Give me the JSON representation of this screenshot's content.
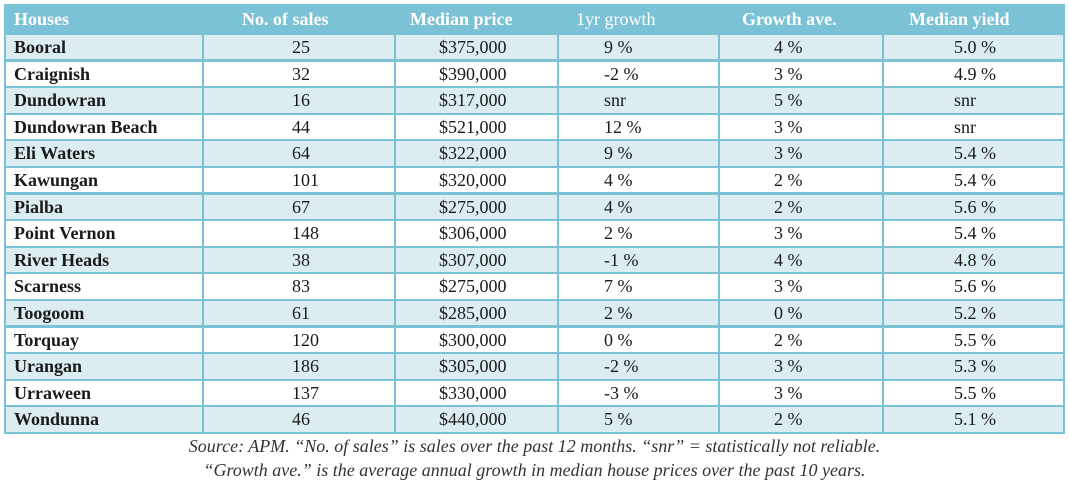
{
  "table": {
    "headers": [
      "Houses",
      "No. of sales",
      "Median price",
      "1yr growth",
      "Growth ave.",
      "Median yield"
    ],
    "rows": [
      [
        "Booral",
        "25",
        "$375,000",
        "9 %",
        "4 %",
        "5.0 %"
      ],
      [
        "Craignish",
        "32",
        "$390,000",
        "-2 %",
        "3 %",
        "4.9 %"
      ],
      [
        "Dundowran",
        "16",
        "$317,000",
        "snr",
        "5 %",
        "snr"
      ],
      [
        "Dundowran Beach",
        "44",
        "$521,000",
        "12 %",
        "3 %",
        "snr"
      ],
      [
        "Eli Waters",
        "64",
        "$322,000",
        "9 %",
        "3 %",
        "5.4 %"
      ],
      [
        "Kawungan",
        "101",
        "$320,000",
        "4 %",
        "2 %",
        "5.4 %"
      ],
      [
        "Pialba",
        "67",
        "$275,000",
        "4 %",
        "2 %",
        "5.6 %"
      ],
      [
        "Point Vernon",
        "148",
        "$306,000",
        "2 %",
        "3 %",
        "5.4 %"
      ],
      [
        "River Heads",
        "38",
        "$307,000",
        "-1 %",
        "4 %",
        "4.8 %"
      ],
      [
        "Scarness",
        "83",
        "$275,000",
        "7 %",
        "3 %",
        "5.6 %"
      ],
      [
        "Toogoom",
        "61",
        "$285,000",
        "2 %",
        "0 %",
        "5.2 %"
      ],
      [
        "Torquay",
        "120",
        "$300,000",
        "0 %",
        "2 %",
        "5.5 %"
      ],
      [
        "Urangan",
        "186",
        "$305,000",
        "-2 %",
        "3 %",
        "5.3 %"
      ],
      [
        "Urraween",
        "137",
        "$330,000",
        "-3 %",
        "3 %",
        "5.5 %"
      ],
      [
        "Wondunna",
        "46",
        "$440,000",
        "5 %",
        "2 %",
        "5.1 %"
      ]
    ]
  },
  "caption": {
    "line1": "Source: APM. “No. of sales” is sales over the past 12 months. “snr” = statistically not reliable.",
    "line2": "“Growth ave.” is the average annual growth in median house prices over the past 10 years."
  },
  "colors": {
    "header_bg": "#7cc2d6",
    "stripe_bg": "#dcedf2",
    "text": "#1a1a1a"
  }
}
